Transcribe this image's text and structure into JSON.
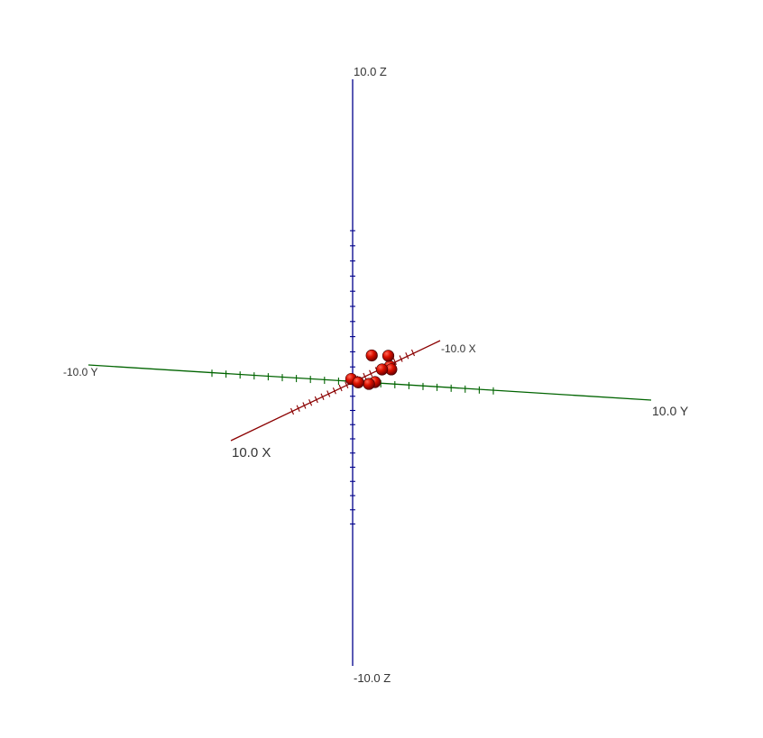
{
  "chart_data": {
    "type": "scatter",
    "title": "",
    "axes": {
      "x": {
        "range": [
          -10,
          10
        ],
        "pos_label": "10.0 X",
        "neg_label": "-10.0 X",
        "color": "#8B0000"
      },
      "y": {
        "range": [
          -10,
          10
        ],
        "pos_label": "10.0 Y",
        "neg_label": "-10.0 Y",
        "color": "#006400"
      },
      "z": {
        "range": [
          -10,
          10
        ],
        "pos_label": "10.0 Z",
        "neg_label": "-10.0 Z",
        "color": "#00008B"
      }
    },
    "ticks_per_axis": 20,
    "grid": false,
    "legend": "none",
    "point_color": "#CC0000",
    "points": [
      {
        "x": 0.0,
        "y": -0.1,
        "z": 0.2
      },
      {
        "x": 0.0,
        "y": 0.4,
        "z": 0.0
      },
      {
        "x": -0.6,
        "y": 0.9,
        "z": -0.2
      },
      {
        "x": -2.0,
        "y": 0.5,
        "z": 1.4
      },
      {
        "x": -3.0,
        "y": 0.8,
        "z": 0.3
      },
      {
        "x": -3.0,
        "y": 0.3,
        "z": -0.6
      },
      {
        "x": -4.5,
        "y": 0.6,
        "z": 0.9
      },
      {
        "x": -5.0,
        "y": 0.5,
        "z": 0.1
      },
      {
        "x": -5.0,
        "y": 0.6,
        "z": -0.1
      }
    ]
  }
}
